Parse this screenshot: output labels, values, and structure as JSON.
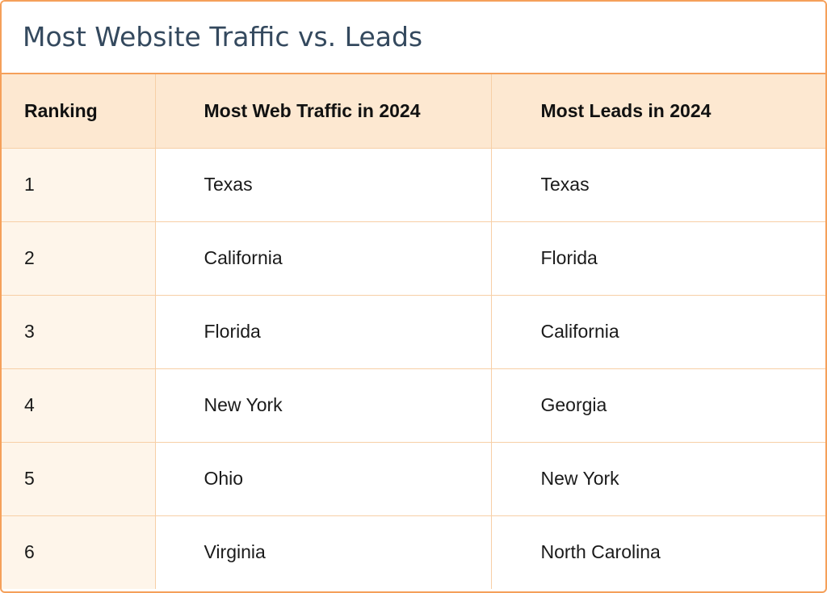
{
  "title": "Most Website Traffic vs. Leads",
  "colors": {
    "border": "#f5a05a",
    "header_bg": "#fde8d1",
    "rank_col_bg": "#fef5ea",
    "title_text": "#34495e"
  },
  "chart_data": {
    "type": "table",
    "title": "Most Website Traffic vs. Leads",
    "columns": [
      "Ranking",
      "Most Web Traffic in 2024",
      "Most Leads in 2024"
    ],
    "rows": [
      [
        "1",
        "Texas",
        "Texas"
      ],
      [
        "2",
        "California",
        "Florida"
      ],
      [
        "3",
        "Florida",
        "California"
      ],
      [
        "4",
        "New York",
        "Georgia"
      ],
      [
        "5",
        "Ohio",
        "New York"
      ],
      [
        "6",
        "Virginia",
        "North Carolina"
      ]
    ]
  }
}
